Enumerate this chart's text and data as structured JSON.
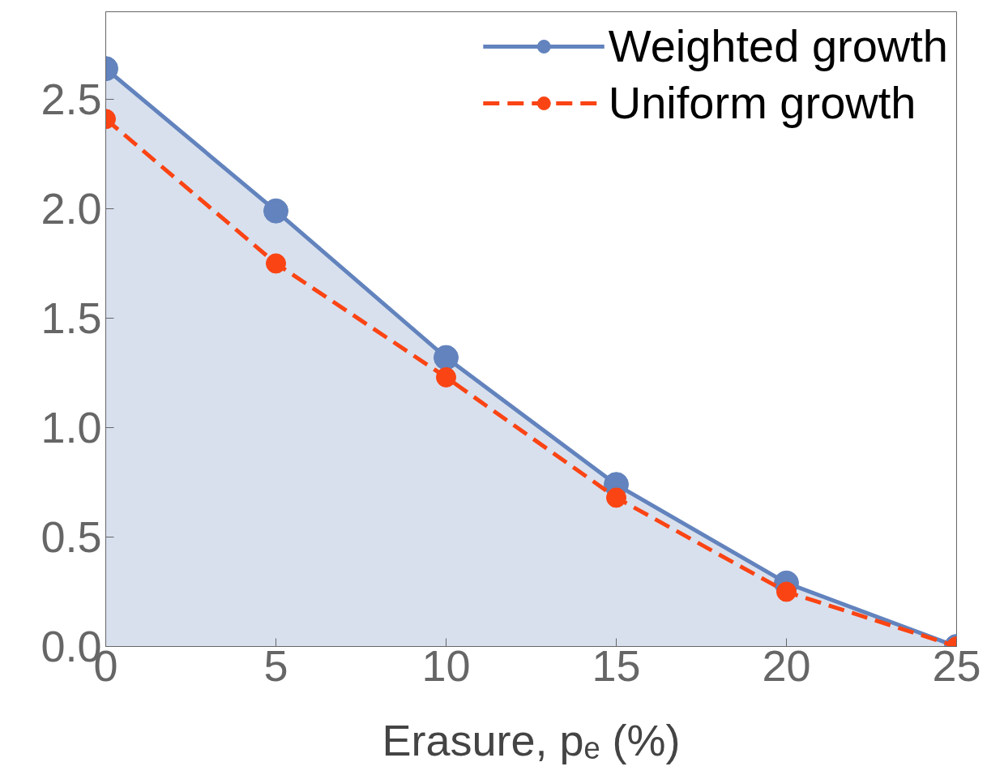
{
  "chart_data": {
    "type": "line",
    "xlabel": "Erasure, pₑ (%)",
    "x": [
      0,
      5,
      10,
      15,
      20,
      25
    ],
    "series": [
      {
        "name": "Weighted growth",
        "type": "area",
        "color": "#6283bd",
        "line_style": "solid",
        "values": [
          2.64,
          1.99,
          1.32,
          0.74,
          0.29,
          0.0
        ]
      },
      {
        "name": "Uniform growth",
        "color": "#fa4414",
        "line_style": "dashed",
        "values": [
          2.41,
          1.75,
          1.23,
          0.68,
          0.25,
          0.0
        ]
      }
    ],
    "xlim": [
      0,
      25
    ],
    "ylim": [
      0,
      2.9
    ],
    "xticks": [
      0,
      5,
      10,
      15,
      20,
      25
    ],
    "yticks": [
      {
        "value": 0,
        "label": "0.0"
      },
      {
        "value": 0.5,
        "label": "0.5"
      },
      {
        "value": 1.0,
        "label": "1.0"
      },
      {
        "value": 1.5,
        "label": "1.5"
      },
      {
        "value": 2.0,
        "label": "2.0"
      },
      {
        "value": 2.5,
        "label": "2.5"
      }
    ],
    "marker": "circle",
    "grid": false,
    "legend": "top right"
  }
}
